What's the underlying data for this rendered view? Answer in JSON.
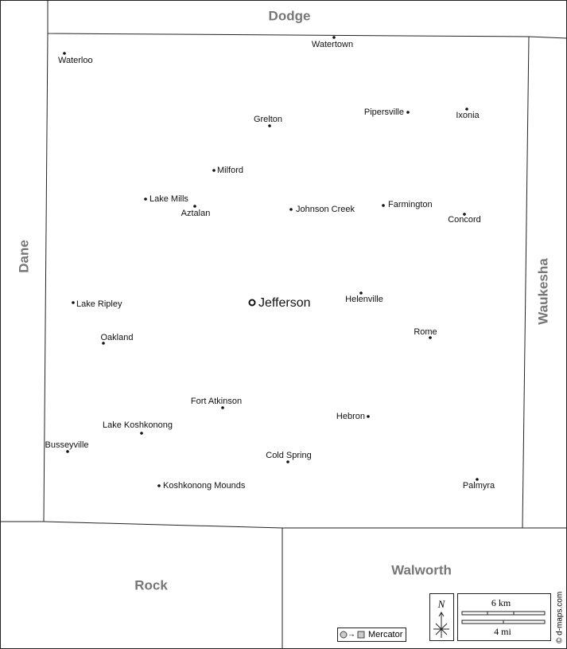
{
  "counties": [
    {
      "name": "Dodge"
    },
    {
      "name": "Dane"
    },
    {
      "name": "Waukesha"
    },
    {
      "name": "Rock"
    },
    {
      "name": "Walworth"
    }
  ],
  "seat": {
    "name": "Jefferson"
  },
  "towns": [
    {
      "name": "Waterloo"
    },
    {
      "name": "Watertown"
    },
    {
      "name": "Grelton"
    },
    {
      "name": "Pipersville"
    },
    {
      "name": "Ixonia"
    },
    {
      "name": "Milford"
    },
    {
      "name": "Lake Mills"
    },
    {
      "name": "Aztalan"
    },
    {
      "name": "Johnson Creek"
    },
    {
      "name": "Farmington"
    },
    {
      "name": "Concord"
    },
    {
      "name": "Lake Ripley"
    },
    {
      "name": "Helenville"
    },
    {
      "name": "Oakland"
    },
    {
      "name": "Rome"
    },
    {
      "name": "Fort Atkinson"
    },
    {
      "name": "Hebron"
    },
    {
      "name": "Lake Koshkonong"
    },
    {
      "name": "Busseyville"
    },
    {
      "name": "Cold Spring"
    },
    {
      "name": "Koshkonong Mounds"
    },
    {
      "name": "Palmyra"
    }
  ],
  "scale": {
    "km": "6 km",
    "mi": "4 mi"
  },
  "compass": "N",
  "projection": "Mercator",
  "credit": "© d-maps.com"
}
